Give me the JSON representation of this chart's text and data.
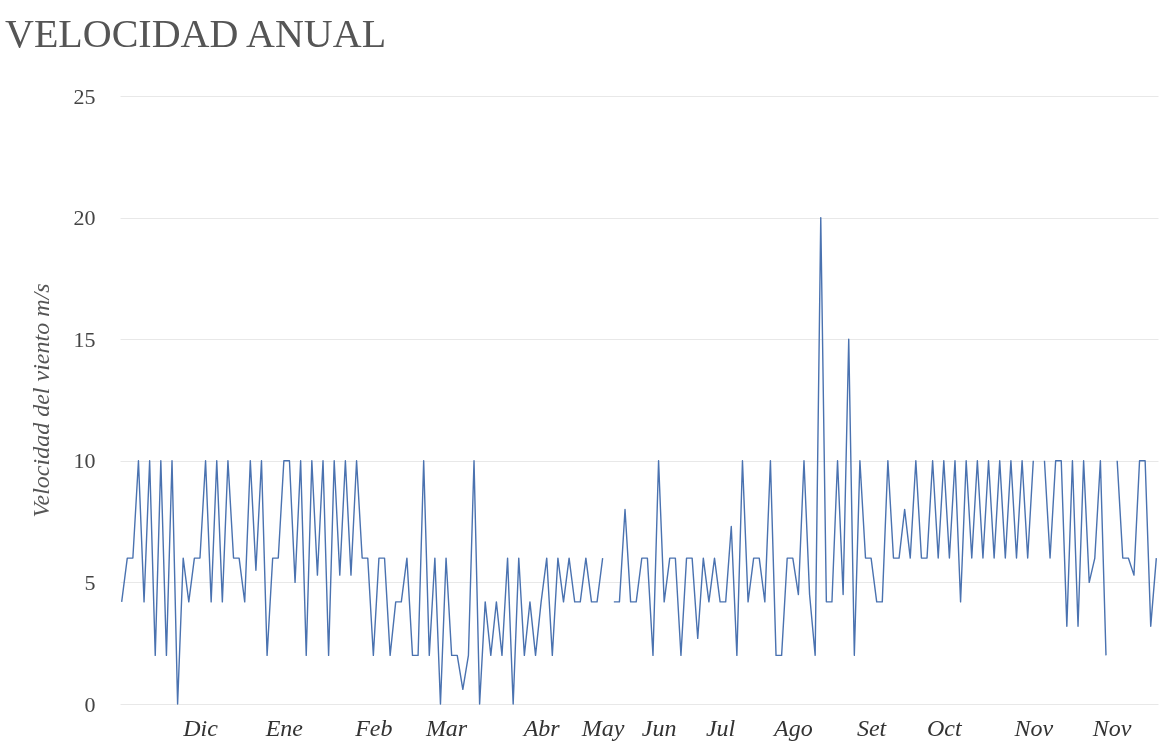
{
  "chart_data": {
    "type": "line",
    "title": "VELOCIDAD ANUAL",
    "ylabel": "Velocidad del viento m/s",
    "categories": [
      null,
      null,
      null,
      null,
      null,
      null,
      null,
      null,
      null,
      null,
      null,
      null,
      null,
      null,
      "Dic",
      null,
      null,
      null,
      null,
      null,
      null,
      null,
      null,
      null,
      null,
      null,
      null,
      null,
      null,
      "Ene",
      null,
      null,
      null,
      null,
      null,
      null,
      null,
      null,
      null,
      null,
      null,
      null,
      null,
      null,
      null,
      "Feb",
      null,
      null,
      null,
      null,
      null,
      null,
      null,
      null,
      null,
      null,
      null,
      null,
      "Mar",
      null,
      null,
      null,
      null,
      null,
      null,
      null,
      null,
      null,
      null,
      null,
      null,
      null,
      null,
      null,
      null,
      "Abr",
      null,
      null,
      null,
      null,
      null,
      null,
      null,
      null,
      null,
      null,
      "May",
      null,
      null,
      null,
      null,
      null,
      null,
      null,
      null,
      null,
      "Jun",
      null,
      null,
      null,
      null,
      null,
      null,
      null,
      null,
      null,
      null,
      "Jul",
      null,
      null,
      null,
      null,
      null,
      null,
      null,
      null,
      null,
      null,
      null,
      null,
      "Ago",
      null,
      null,
      null,
      null,
      null,
      null,
      null,
      null,
      null,
      null,
      null,
      null,
      null,
      "Set",
      null,
      null,
      null,
      null,
      null,
      null,
      null,
      null,
      null,
      null,
      null,
      null,
      "Oct",
      null,
      null,
      null,
      null,
      null,
      null,
      null,
      null,
      null,
      null,
      null,
      null,
      null,
      null,
      null,
      "Nov",
      null,
      null,
      null,
      null,
      null,
      null,
      null,
      null,
      null,
      null,
      null,
      null,
      null,
      "Nov",
      null,
      null,
      null,
      null,
      null,
      null,
      null,
      null
    ],
    "ylim": [
      0,
      25
    ],
    "yticks": [
      0,
      5,
      10,
      15,
      20,
      25
    ],
    "grid": "y",
    "marker": "none",
    "line_style": "solid",
    "series": [
      {
        "color": "#4a72b0",
        "values": [
          4.2,
          6,
          6,
          10,
          4.2,
          10,
          2,
          10,
          2,
          10,
          0,
          6,
          4.2,
          6,
          6,
          10,
          4.2,
          10,
          4.2,
          10,
          6,
          6,
          4.2,
          10,
          5.5,
          10,
          2,
          6,
          6,
          10,
          10,
          5,
          10,
          2,
          10,
          5.3,
          10,
          2,
          10,
          5.3,
          10,
          5.3,
          10,
          6,
          6,
          2,
          6,
          6,
          2,
          4.2,
          4.2,
          6,
          2,
          2,
          10,
          2,
          6,
          0,
          6,
          2,
          2,
          0.6,
          2,
          10,
          0,
          4.2,
          2,
          4.2,
          2,
          6,
          0,
          6,
          2,
          4.2,
          2,
          4.2,
          6,
          2,
          6,
          4.2,
          6,
          4.2,
          4.2,
          6,
          4.2,
          4.2,
          6,
          null,
          4.2,
          4.2,
          8,
          4.2,
          4.2,
          6,
          6,
          2,
          10,
          4.2,
          6,
          6,
          2,
          6,
          6,
          2.7,
          6,
          4.2,
          6,
          4.2,
          4.2,
          7.3,
          2,
          10,
          4.2,
          6,
          6,
          4.2,
          10,
          2,
          2,
          6,
          6,
          4.5,
          10,
          4.5,
          2,
          20,
          4.2,
          4.2,
          10,
          4.5,
          15,
          2,
          10,
          6,
          6,
          4.2,
          4.2,
          10,
          6,
          6,
          8,
          6,
          10,
          6,
          6,
          10,
          6,
          10,
          6,
          10,
          4.2,
          10,
          6,
          10,
          6,
          10,
          6,
          10,
          6,
          10,
          6,
          10,
          6,
          10,
          null,
          10,
          6,
          10,
          10,
          3.2,
          10,
          3.2,
          10,
          5,
          6,
          10,
          2,
          null,
          10,
          6,
          6,
          5.3,
          10,
          10,
          3.2,
          6
        ]
      }
    ]
  }
}
